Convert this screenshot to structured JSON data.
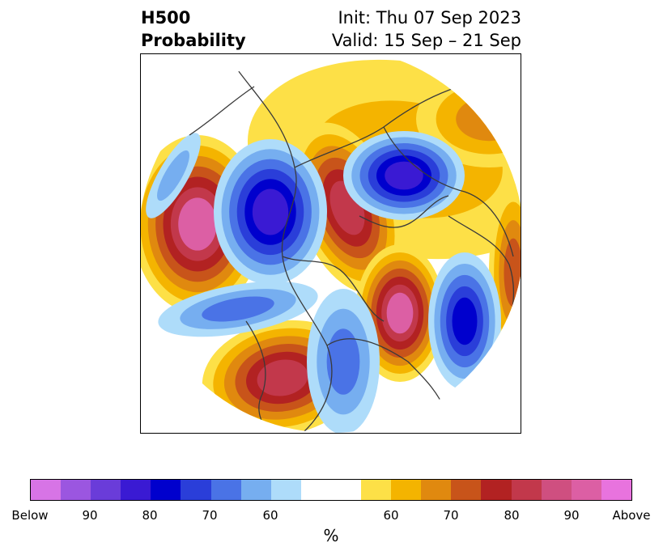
{
  "title": {
    "left_line1": "H500",
    "left_line2": "Probability",
    "right_line1": "Init: Thu 07 Sep 2023",
    "right_line2": "Valid: 15 Sep – 21 Sep"
  },
  "colorbar": {
    "label": "%",
    "colors": [
      "#d774e6",
      "#9b56e0",
      "#6a3cd9",
      "#3a1ad3",
      "#0000cd",
      "#2a3ed9",
      "#4a73e6",
      "#76aef0",
      "#aedcfa",
      "#ffffff",
      "#fde047",
      "#f4b400",
      "#e0890f",
      "#c8541a",
      "#b22222",
      "#c2384b",
      "#cf4f80",
      "#dc5fa4",
      "#e873de"
    ],
    "ticks": [
      "Below",
      "90",
      "80",
      "70",
      "60",
      "60",
      "70",
      "80",
      "90",
      "Above"
    ]
  },
  "map": {
    "projection": "north-polar-stereographic",
    "colors": {
      "above_60": "#fde047",
      "above_65": "#f4b400",
      "above_70": "#e0890f",
      "above_75": "#c8541a",
      "above_80": "#b22222",
      "above_85": "#c2384b",
      "above_90": "#dc5fa4",
      "below_60": "#aedcfa",
      "below_65": "#76aef0",
      "below_70": "#4a73e6",
      "below_75": "#2a3ed9",
      "below_80": "#0000cd",
      "below_85": "#3a1ad3",
      "below_90": "#6a3cd9",
      "coastline": "#3a3a3a"
    }
  }
}
